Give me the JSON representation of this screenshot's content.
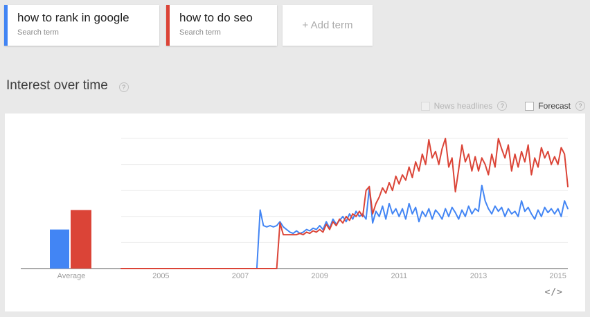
{
  "colors": {
    "blue": "#4285f4",
    "red": "#db4437",
    "page_bg": "#e9e9e9",
    "panel_bg": "#ffffff",
    "grid": "#ebebeb",
    "axis": "#8f8f8f",
    "tick_label": "#9e9e9e"
  },
  "terms": [
    {
      "label": "how to rank in google",
      "type_label": "Search term",
      "color_key": "blue"
    },
    {
      "label": "how to do seo",
      "type_label": "Search term",
      "color_key": "red"
    }
  ],
  "add_term_label": "+ Add term",
  "section": {
    "title": "Interest over time",
    "help_icon": "?"
  },
  "controls": {
    "news_headlines_label": "News headlines",
    "forecast_label": "Forecast",
    "news_enabled": false,
    "forecast_enabled": true,
    "help_icon": "?"
  },
  "embed_icon": "</>",
  "chart_data": {
    "type": "line",
    "title": "Interest over time",
    "ylim": [
      0,
      100
    ],
    "gridlines": [
      20,
      40,
      60,
      80,
      100
    ],
    "grid": true,
    "legend_position": "none",
    "x_start": "2004-01",
    "x_end": "2015-04",
    "x_axis_labels": [
      "2005",
      "2007",
      "2009",
      "2011",
      "2013",
      "2015"
    ],
    "average_category_label": "Average",
    "series": [
      {
        "name": "how to rank in google",
        "color": "#4285f4",
        "average": 30,
        "values": [
          0,
          0,
          0,
          0,
          0,
          0,
          0,
          0,
          0,
          0,
          0,
          0,
          0,
          0,
          0,
          0,
          0,
          0,
          0,
          0,
          0,
          0,
          0,
          0,
          0,
          0,
          0,
          0,
          0,
          0,
          0,
          0,
          0,
          0,
          0,
          0,
          0,
          0,
          0,
          0,
          0,
          0,
          45,
          33,
          32,
          33,
          32,
          33,
          36,
          32,
          30,
          28,
          27,
          29,
          27,
          28,
          30,
          29,
          31,
          30,
          33,
          30,
          36,
          31,
          38,
          34,
          37,
          40,
          36,
          42,
          38,
          44,
          40,
          42,
          38,
          62,
          35,
          44,
          40,
          48,
          38,
          50,
          42,
          46,
          40,
          46,
          38,
          50,
          42,
          47,
          36,
          44,
          40,
          46,
          38,
          45,
          42,
          38,
          46,
          40,
          47,
          43,
          38,
          45,
          40,
          48,
          42,
          46,
          44,
          64,
          52,
          46,
          42,
          48,
          44,
          47,
          40,
          46,
          42,
          44,
          40,
          52,
          44,
          47,
          42,
          38,
          45,
          40,
          47,
          43,
          46,
          42,
          46,
          40,
          52,
          46
        ]
      },
      {
        "name": "how to do seo",
        "color": "#db4437",
        "average": 45,
        "values": [
          0,
          0,
          0,
          0,
          0,
          0,
          0,
          0,
          0,
          0,
          0,
          0,
          0,
          0,
          0,
          0,
          0,
          0,
          0,
          0,
          0,
          0,
          0,
          0,
          0,
          0,
          0,
          0,
          0,
          0,
          0,
          0,
          0,
          0,
          0,
          0,
          0,
          0,
          0,
          0,
          0,
          0,
          0,
          0,
          0,
          0,
          0,
          0,
          35,
          26,
          26,
          26,
          26,
          26,
          27,
          26,
          28,
          27,
          29,
          28,
          30,
          28,
          34,
          30,
          36,
          33,
          38,
          35,
          40,
          37,
          42,
          40,
          44,
          40,
          60,
          63,
          42,
          50,
          55,
          62,
          58,
          66,
          60,
          71,
          65,
          72,
          68,
          78,
          70,
          82,
          75,
          88,
          80,
          99,
          85,
          90,
          80,
          92,
          100,
          78,
          85,
          59,
          76,
          95,
          82,
          88,
          75,
          86,
          75,
          85,
          80,
          72,
          88,
          78,
          100,
          92,
          85,
          95,
          75,
          88,
          78,
          90,
          82,
          95,
          72,
          85,
          78,
          93,
          85,
          90,
          80,
          86,
          80,
          93,
          88,
          63
        ]
      }
    ]
  }
}
